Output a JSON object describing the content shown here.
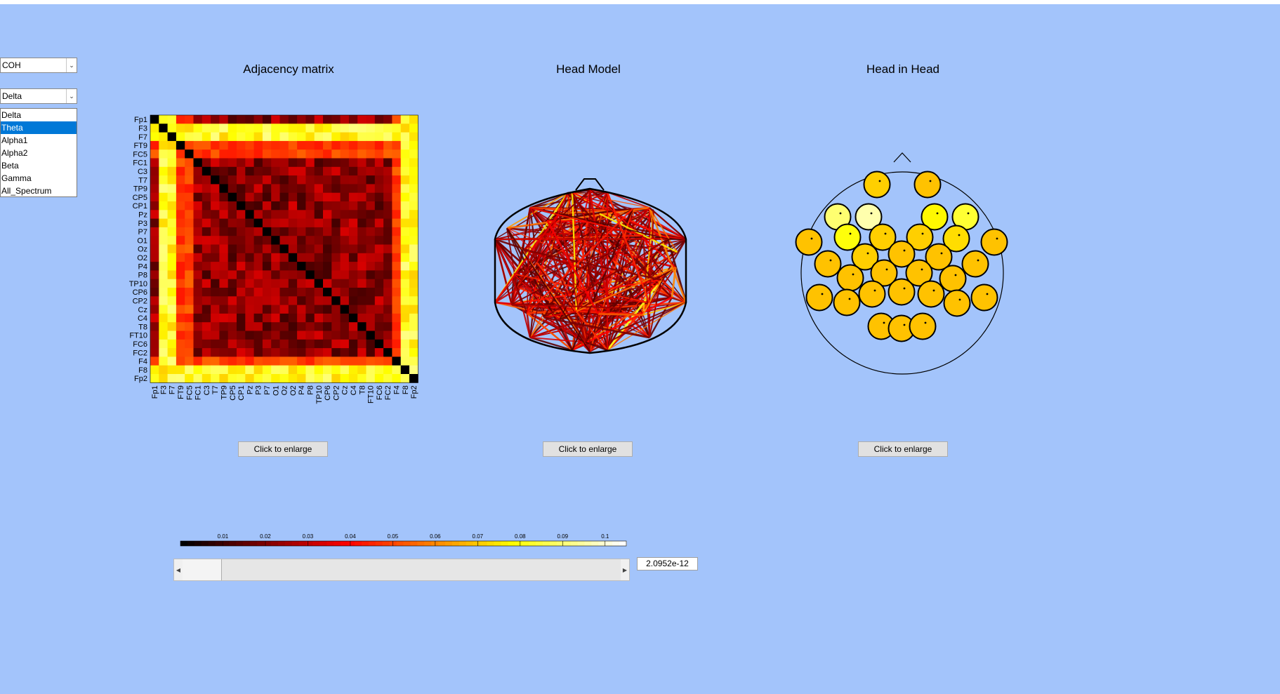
{
  "controls": {
    "measure_select": {
      "value": "COH"
    },
    "band_select": {
      "value": "Delta",
      "options": [
        "Delta",
        "Theta",
        "Alpha1",
        "Alpha2",
        "Beta",
        "Gamma",
        "All_Spectrum"
      ],
      "highlighted": "Theta"
    }
  },
  "panels": {
    "adjacency": {
      "title": "Adjacency matrix",
      "button": "Click to enlarge"
    },
    "head_model": {
      "title": "Head Model",
      "button": "Click to enlarge"
    },
    "head_in_head": {
      "title": "Head in Head",
      "button": "Click to enlarge"
    }
  },
  "colorbar": {
    "colormap": "hot",
    "ticks": [
      "0.01",
      "0.02",
      "0.03",
      "0.04",
      "0.05",
      "0.06",
      "0.07",
      "0.08",
      "0.09",
      "0.1"
    ]
  },
  "threshold": {
    "value": "2.0952e-12"
  },
  "chart_data": {
    "type": "heatmap",
    "channels": [
      "Fp1",
      "F3",
      "F7",
      "FT9",
      "FC5",
      "FC1",
      "C3",
      "T7",
      "TP9",
      "CP5",
      "CP1",
      "Pz",
      "P3",
      "P7",
      "O1",
      "Oz",
      "O2",
      "P4",
      "P8",
      "TP10",
      "CP6",
      "CP2",
      "Cz",
      "C4",
      "T8",
      "FT10",
      "FC6",
      "FC2",
      "F4",
      "F8",
      "Fp2"
    ],
    "colormap": "hot",
    "value_range": [
      0,
      0.105
    ],
    "high_channels": [
      "F3",
      "F7",
      "F8",
      "Fp2"
    ],
    "medium_channels": [
      "FT9",
      "FC5",
      "F4"
    ]
  },
  "colors": {
    "background": "#a3c4fb",
    "selection": "#0078d7"
  }
}
